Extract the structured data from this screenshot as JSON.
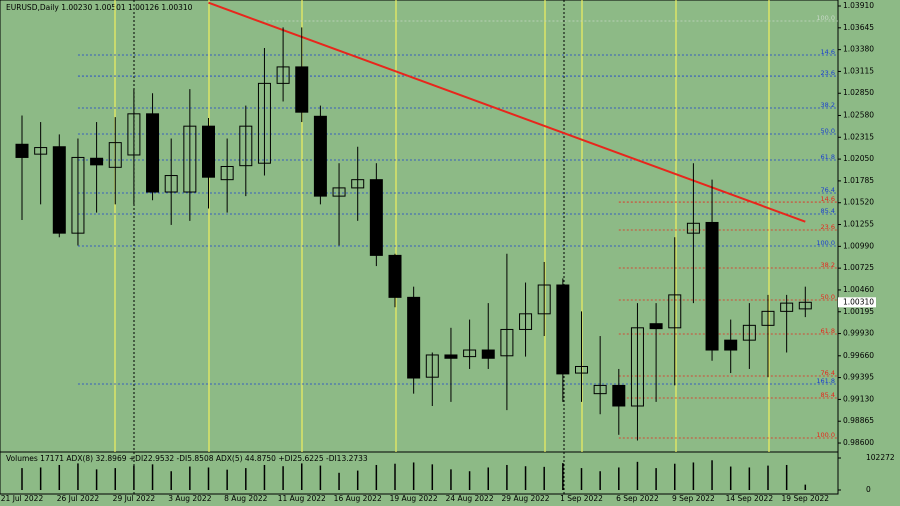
{
  "chart_data": {
    "type": "candlestick",
    "title": "EURUSD,Daily  1.00230 1.00501 1.00126 1.00310",
    "categories": [
      "21 Jul 2022",
      null,
      null,
      "26 Jul 2022",
      null,
      null,
      "29 Jul 2022",
      null,
      null,
      "3 Aug 2022",
      null,
      null,
      "8 Aug 2022",
      null,
      null,
      "11 Aug 2022",
      null,
      null,
      "16 Aug 2022",
      null,
      null,
      "19 Aug 2022",
      null,
      null,
      "24 Aug 2022",
      null,
      null,
      "29 Aug 2022",
      null,
      null,
      "1 Sep 2022",
      null,
      null,
      "6 Sep 2022",
      null,
      null,
      "9 Sep 2022",
      null,
      null,
      "14 Sep 2022",
      null,
      null,
      "19 Sep 2022"
    ],
    "open": [
      1.0223,
      1.0211,
      1.022,
      1.0115,
      1.0206,
      1.0195,
      1.021,
      1.026,
      1.0165,
      1.0165,
      1.0245,
      1.018,
      1.0197,
      1.02,
      1.0297,
      1.0317,
      1.0257,
      1.016,
      1.017,
      1.018,
      1.0088,
      1.0037,
      0.994,
      0.9967,
      0.9965,
      0.9973,
      0.9966,
      0.9998,
      1.0017,
      1.0052,
      0.9945,
      0.992,
      0.993,
      0.9905,
      1.0005,
      1.0,
      1.0115,
      1.0128,
      0.9985,
      0.9985,
      1.0003,
      1.002,
      1.0023
    ],
    "high": [
      1.0258,
      1.025,
      1.0235,
      1.023,
      1.025,
      1.0256,
      1.029,
      1.0285,
      1.023,
      1.029,
      1.0255,
      1.023,
      1.027,
      1.034,
      1.0365,
      1.0365,
      1.027,
      1.02,
      1.022,
      1.02,
      1.009,
      1.005,
      0.997,
      1.0,
      1.001,
      1.003,
      1.009,
      1.0055,
      1.008,
      1.006,
      1.002,
      0.999,
      0.995,
      1.003,
      1.003,
      1.011,
      1.02,
      1.018,
      1.001,
      1.003,
      1.004,
      1.004,
      1.005
    ],
    "low": [
      1.0131,
      1.015,
      1.011,
      1.01,
      1.014,
      1.015,
      1.015,
      1.0155,
      1.0125,
      1.013,
      1.0145,
      1.014,
      1.016,
      1.0185,
      1.0275,
      1.025,
      1.015,
      1.01,
      1.013,
      1.0075,
      1.0025,
      0.992,
      0.9905,
      0.991,
      0.995,
      0.995,
      0.99,
      0.9965,
      0.999,
      0.991,
      0.991,
      0.9895,
      0.987,
      0.9863,
      0.991,
      0.993,
      1.003,
      0.996,
      0.9945,
      0.995,
      0.994,
      0.997,
      1.0013
    ],
    "close": [
      1.0207,
      1.0219,
      1.0115,
      1.0207,
      1.0198,
      1.0225,
      1.026,
      1.0165,
      1.0185,
      1.0245,
      1.0183,
      1.0196,
      1.0245,
      1.0297,
      1.0317,
      1.0262,
      1.016,
      1.017,
      1.018,
      1.0088,
      1.0037,
      0.9939,
      0.9967,
      0.9963,
      0.9973,
      0.9963,
      0.9998,
      1.0017,
      1.0052,
      0.9944,
      0.9953,
      0.993,
      0.9905,
      1.0,
      0.9999,
      1.004,
      1.0127,
      0.9973,
      0.9973,
      1.0003,
      1.002,
      1.003,
      1.0031
    ],
    "ylim": [
      0.98491,
      1.03983
    ],
    "yticks": [
      {
        "value": 1.0391,
        "label": "1.03910"
      },
      {
        "value": 1.03645,
        "label": "1.03645"
      },
      {
        "value": 1.0338,
        "label": "1.03380"
      },
      {
        "value": 1.03115,
        "label": "1.03115"
      },
      {
        "value": 1.0285,
        "label": "1.02850"
      },
      {
        "value": 1.0258,
        "label": "1.02580"
      },
      {
        "value": 1.02315,
        "label": "1.02315"
      },
      {
        "value": 1.0205,
        "label": "1.02050"
      },
      {
        "value": 1.01785,
        "label": "1.01785"
      },
      {
        "value": 1.0152,
        "label": "1.01520"
      },
      {
        "value": 1.01255,
        "label": "1.01255"
      },
      {
        "value": 1.0099,
        "label": "1.00990"
      },
      {
        "value": 1.00725,
        "label": "1.00725"
      },
      {
        "value": 1.0046,
        "label": "1.00460"
      },
      {
        "value": 1.00195,
        "label": "1.00195"
      },
      {
        "value": 0.9993,
        "label": "0.99930"
      },
      {
        "value": 0.9966,
        "label": "0.99660"
      },
      {
        "value": 0.99395,
        "label": "0.99395"
      },
      {
        "value": 0.9913,
        "label": "0.99130"
      },
      {
        "value": 0.98865,
        "label": "0.98865"
      },
      {
        "value": 0.986,
        "label": "0.98600"
      }
    ],
    "current_price": {
      "value": 1.0031,
      "label": "1.00310"
    },
    "trendline": {
      "color": "#e8261c",
      "x": [
        10,
        42
      ],
      "values": [
        1.0395,
        1.0129
      ]
    },
    "fib_levels": [
      {
        "label": "100.0",
        "value": 1.03728,
        "color": "#c8d8c8",
        "start": 13
      },
      {
        "label": "14.6",
        "value": 1.03315,
        "color": "#1a3fd0",
        "start": 3
      },
      {
        "label": "23.6",
        "value": 1.03059,
        "color": "#1a3fd0",
        "start": 3
      },
      {
        "label": "38.2",
        "value": 1.02671,
        "color": "#1a3fd0",
        "start": 3
      },
      {
        "label": "50.0",
        "value": 1.02355,
        "color": "#1a3fd0",
        "start": 3
      },
      {
        "label": "61.8",
        "value": 1.02039,
        "color": "#1a3fd0",
        "start": 3
      },
      {
        "label": "76.4",
        "value": 1.01638,
        "color": "#1a3fd0",
        "start": 3
      },
      {
        "label": "85.4",
        "value": 1.01383,
        "color": "#1a3fd0",
        "start": 3
      },
      {
        "label": "100.0",
        "value": 1.00994,
        "color": "#1a3fd0",
        "start": 3
      },
      {
        "label": "161.8",
        "value": 0.99317,
        "color": "#1a3fd0",
        "start": 3
      },
      {
        "label": "14.6",
        "value": 1.01528,
        "color": "#e8261c",
        "start": 32
      },
      {
        "label": "23.6",
        "value": 1.01188,
        "color": "#e8261c",
        "start": 32
      },
      {
        "label": "38.2",
        "value": 1.00727,
        "color": "#e8261c",
        "start": 32
      },
      {
        "label": "50.0",
        "value": 1.00338,
        "color": "#e8261c",
        "start": 32
      },
      {
        "label": "61.8",
        "value": 0.99925,
        "color": "#e8261c",
        "start": 32
      },
      {
        "label": "76.4",
        "value": 0.99414,
        "color": "#e8261c",
        "start": 32
      },
      {
        "label": "85.4",
        "value": 0.99147,
        "color": "#e8261c",
        "start": 32
      },
      {
        "label": "100.0",
        "value": 0.98661,
        "color": "#e8261c",
        "start": 32
      }
    ],
    "indicator_label": "Volumes 17171  ADX(8) 32.8969 +DI22.9532 -DI5.8508  ADX(5) 44.8750 +DI25.6225 -DI13.2733",
    "volumes": [
      70000,
      72000,
      80000,
      85000,
      66000,
      70000,
      78000,
      82000,
      60000,
      75000,
      72000,
      65000,
      70000,
      80000,
      76000,
      85000,
      78000,
      55000,
      62000,
      80000,
      84000,
      88000,
      82000,
      66000,
      60000,
      72000,
      80000,
      76000,
      74000,
      86000,
      70000,
      60000,
      72000,
      90000,
      70000,
      84000,
      88000,
      95000,
      75000,
      72000,
      78000,
      80000,
      17171
    ],
    "volume_ylim": [
      0,
      102272
    ],
    "volume_yticks": [
      102272,
      0
    ]
  }
}
